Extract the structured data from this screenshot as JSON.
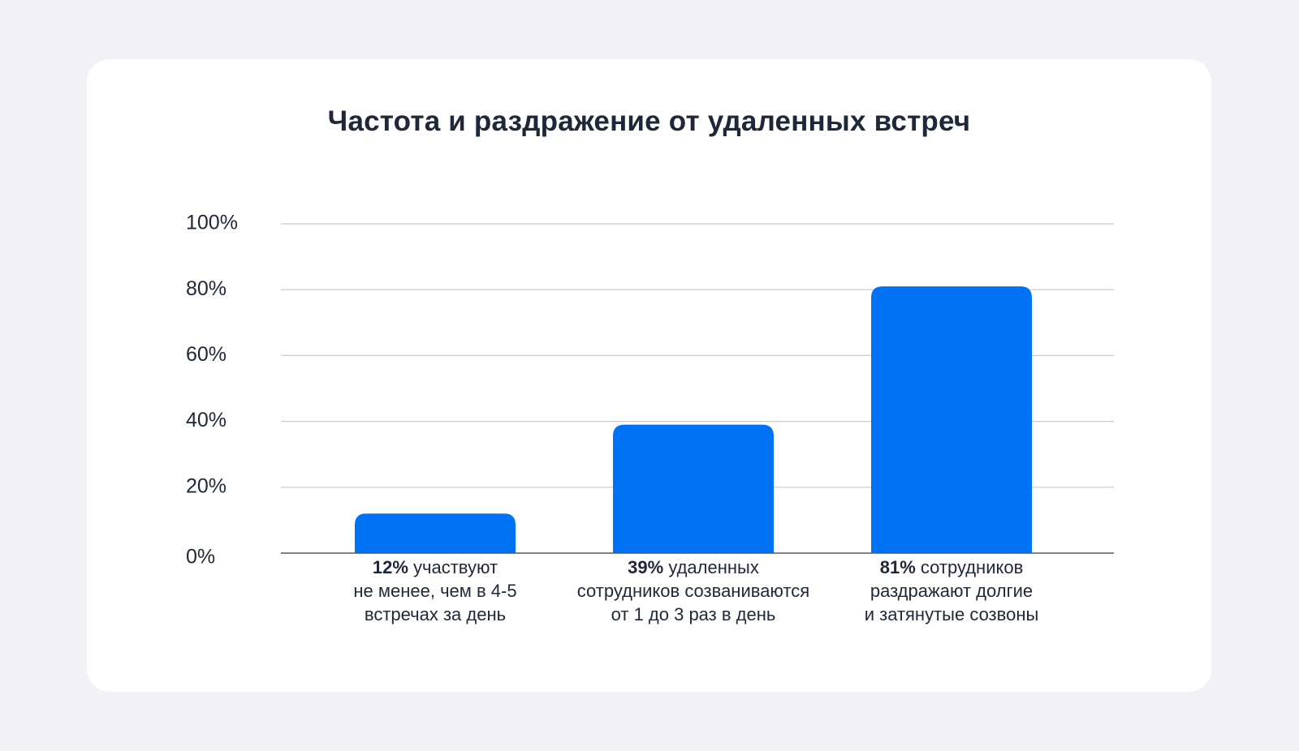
{
  "chart_data": {
    "type": "bar",
    "title": "Частота и раздражение от удаленных встреч",
    "xlabel": "",
    "ylabel": "",
    "ylim": [
      0,
      100
    ],
    "yticks": [
      {
        "value": 0,
        "label": "0%"
      },
      {
        "value": 20,
        "label": "20%"
      },
      {
        "value": 40,
        "label": "40%"
      },
      {
        "value": 60,
        "label": "60%"
      },
      {
        "value": 80,
        "label": "80%"
      },
      {
        "value": 100,
        "label": "100%"
      }
    ],
    "grid": true,
    "categories": [
      {
        "value": 12,
        "pct": "12%",
        "line1_rest": " участвуют",
        "line2": "не менее, чем в 4-5",
        "line3": "встречах за день"
      },
      {
        "value": 39,
        "pct": "39%",
        "line1_rest": " удаленных",
        "line2": "сотрудников созваниваются",
        "line3": "от 1 до 3 раз в день"
      },
      {
        "value": 81,
        "pct": "81%",
        "line1_rest": " сотрудников",
        "line2": "раздражают долгие",
        "line3": "и затянутые созвоны"
      }
    ],
    "bar_color": "#0073f5"
  }
}
